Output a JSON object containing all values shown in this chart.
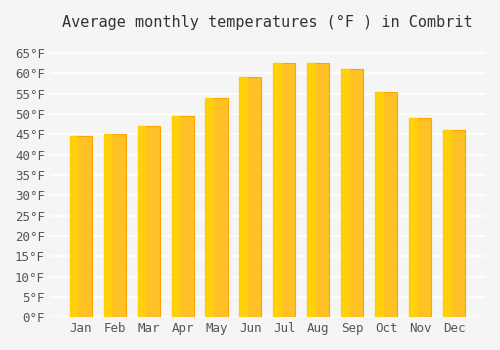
{
  "title": "Average monthly temperatures (°F ) in Combrit",
  "months": [
    "Jan",
    "Feb",
    "Mar",
    "Apr",
    "May",
    "Jun",
    "Jul",
    "Aug",
    "Sep",
    "Oct",
    "Nov",
    "Dec"
  ],
  "values": [
    44.5,
    45.0,
    47.0,
    49.5,
    54.0,
    59.0,
    62.5,
    62.5,
    61.0,
    55.5,
    49.0,
    46.0
  ],
  "bar_color_main": "#FFC125",
  "bar_color_edge": "#FFA500",
  "bar_color_highlight": "#FFD700",
  "background_color": "#f5f5f5",
  "grid_color": "#ffffff",
  "ylim": [
    0,
    68
  ],
  "yticks": [
    0,
    5,
    10,
    15,
    20,
    25,
    30,
    35,
    40,
    45,
    50,
    55,
    60,
    65
  ],
  "title_fontsize": 11,
  "tick_fontsize": 9,
  "font_family": "monospace"
}
